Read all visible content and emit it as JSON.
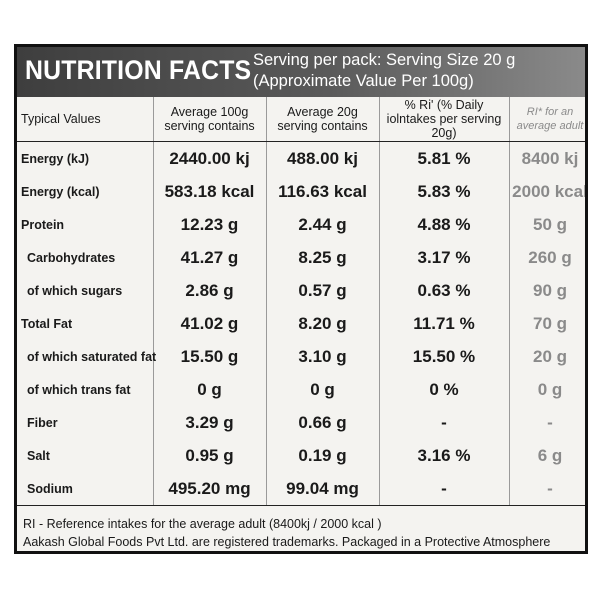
{
  "header": {
    "title": "NUTRITION FACTS",
    "serving_line1": "Serving per pack: Serving Size 20 g",
    "serving_line2": "(Approximate Value Per 100g)"
  },
  "table": {
    "columns": [
      "Typical Values",
      "Average 100g serving contains",
      "Average 20g serving contains",
      "% Ri' (% Daily iolntakes per serving 20g)",
      "RI* for an average adult"
    ],
    "rows": [
      {
        "name": "Energy (kJ)",
        "per100": "2440.00 kj",
        "per20": "488.00 kj",
        "ri_pct": "5.81 %",
        "ri": "8400 kj"
      },
      {
        "name": "Energy (kcal)",
        "per100": "583.18 kcal",
        "per20": "116.63 kcal",
        "ri_pct": "5.83 %",
        "ri": "2000 kcal"
      },
      {
        "name": "Protein",
        "per100": "12.23 g",
        "per20": "2.44 g",
        "ri_pct": "4.88 %",
        "ri": "50 g"
      },
      {
        "name": "Carbohydrates",
        "per100": "41.27 g",
        "per20": "8.25 g",
        "ri_pct": "3.17 %",
        "ri": "260 g"
      },
      {
        "name": "of which sugars",
        "per100": "2.86 g",
        "per20": "0.57 g",
        "ri_pct": "0.63 %",
        "ri": "90 g"
      },
      {
        "name": "Total Fat",
        "per100": "41.02 g",
        "per20": "8.20 g",
        "ri_pct": "11.71 %",
        "ri": "70 g"
      },
      {
        "name": "of which saturated fat",
        "per100": "15.50 g",
        "per20": "3.10 g",
        "ri_pct": "15.50 %",
        "ri": "20 g"
      },
      {
        "name": "of which trans fat",
        "per100": "0 g",
        "per20": "0 g",
        "ri_pct": "0 %",
        "ri": "0 g"
      },
      {
        "name": "Fiber",
        "per100": "3.29 g",
        "per20": "0.66 g",
        "ri_pct": "-",
        "ri": "-"
      },
      {
        "name": "Salt",
        "per100": "0.95 g",
        "per20": "0.19 g",
        "ri_pct": "3.16 %",
        "ri": "6 g"
      },
      {
        "name": "Sodium",
        "per100": "495.20 mg",
        "per20": "99.04 mg",
        "ri_pct": "-",
        "ri": "-"
      }
    ]
  },
  "footer": {
    "line1": "RI - Reference intakes for the average adult (8400kj / 2000 kcal )",
    "line2": "Aakash Global Foods Pvt Ltd. are registered trademarks. Packaged in a Protective Atmosphere"
  }
}
